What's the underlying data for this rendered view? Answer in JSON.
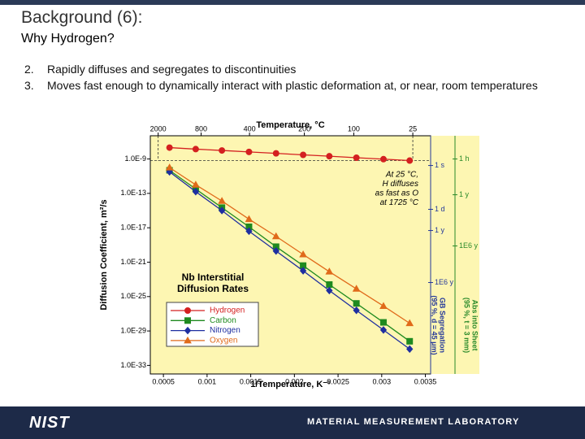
{
  "slide": {
    "title": "Background (6):",
    "subtitle": "Why Hydrogen?",
    "items": [
      {
        "number": "2.",
        "text": "Rapidly diffuses and segregates to discontinuities"
      },
      {
        "number": "3.",
        "text": "Moves fast enough to dynamically interact with plastic deformation at, or near, room temperatures"
      }
    ],
    "footer": {
      "logo": "NIST",
      "lab": "MATERIAL MEASUREMENT LABORATORY"
    }
  },
  "chart_data": {
    "type": "line",
    "y_scale": "log",
    "x_label": "1/Temperature, K⁻¹",
    "y_label": "Diffusion Coefficient, m²/s",
    "x2_label": "Temperature, °C",
    "background": "#fdf6b2",
    "x": [
      0.00057,
      0.00087,
      0.00117,
      0.00148,
      0.00179,
      0.0021,
      0.0024,
      0.00271,
      0.00302,
      0.00332
    ],
    "series": [
      {
        "name": "Hydrogen",
        "color": "#d42020",
        "marker": "circle",
        "values": [
          2.1e-08,
          1.4e-08,
          9.8e-09,
          6.6e-09,
          4.5e-09,
          3e-09,
          2.1e-09,
          1.4e-09,
          9.5e-10,
          6.5e-10
        ]
      },
      {
        "name": "Carbon",
        "color": "#1f8a1f",
        "marker": "square",
        "values": [
          4.8e-11,
          3.2e-13,
          2.2e-15,
          1.3e-17,
          6.3e-20,
          4e-22,
          2.5e-24,
          1.6e-26,
          1e-28,
          6.3e-31
        ]
      },
      {
        "name": "Nitrogen",
        "color": "#1f2fa0",
        "marker": "diamond",
        "values": [
          3.2e-11,
          1.6e-13,
          1e-15,
          4e-18,
          2e-20,
          1e-22,
          5e-25,
          2.5e-27,
          1.3e-29,
          7.9e-32
        ]
      },
      {
        "name": "Oxygen",
        "color": "#e06a1a",
        "marker": "triangle",
        "values": [
          1e-10,
          1e-12,
          1.3e-14,
          1e-16,
          1e-18,
          7.9e-21,
          7.9e-23,
          7.9e-25,
          7.9e-27,
          7.9e-29
        ]
      }
    ],
    "xlim": [
      0.00035,
      0.00356
    ],
    "ylim": [
      1e-34,
      5e-07
    ],
    "xticks": [
      0.0005,
      0.001,
      0.0015,
      0.002,
      0.0025,
      0.003,
      0.0035
    ],
    "yticks": [
      {
        "value": 1e-09,
        "label": "1.0E-9"
      },
      {
        "value": 1e-13,
        "label": "1.0E-13"
      },
      {
        "value": 1e-17,
        "label": "1.0E-17"
      },
      {
        "value": 1e-21,
        "label": "1.0E-21"
      },
      {
        "value": 1e-25,
        "label": "1.0E-25"
      },
      {
        "value": 1e-29,
        "label": "1.0E-29"
      },
      {
        "value": 1e-33,
        "label": "1.0E-33"
      }
    ],
    "x2ticks": [
      {
        "value": 0.00044,
        "label": "2000"
      },
      {
        "value": 0.000932,
        "label": "800"
      },
      {
        "value": 0.001486,
        "label": "400"
      },
      {
        "value": 0.002114,
        "label": "200"
      },
      {
        "value": 0.00268,
        "label": "100"
      },
      {
        "value": 0.003356,
        "label": "25"
      }
    ],
    "legend_title": [
      "Nb Interstitial",
      "Diffusion Rates"
    ],
    "annotation": [
      "At 25 °C,",
      "H diffuses",
      "as fast as O",
      "at 1725 °C"
    ],
    "time_scales": [
      {
        "title": [
          "GB Segregation",
          "(95 %, d = 45 μm)"
        ],
        "color": "#24389a",
        "marks": [
          {
            "label": "1 s",
            "value": 1.75e-10
          },
          {
            "label": "1 d",
            "value": 1.4e-15
          },
          {
            "label": "1 y",
            "value": 4.8e-18
          },
          {
            "label": "1E6 y",
            "value": 4.3e-24
          }
        ]
      },
      {
        "title": [
          "Abs into Sheet",
          "(95 %, t = 3 mm)"
        ],
        "color": "#2a8a2a",
        "marks": [
          {
            "label": "1 h",
            "value": 1e-09
          },
          {
            "label": "1 y",
            "value": 6.9e-14
          },
          {
            "label": "1E6 y",
            "value": 7.7e-20
          }
        ]
      }
    ]
  }
}
